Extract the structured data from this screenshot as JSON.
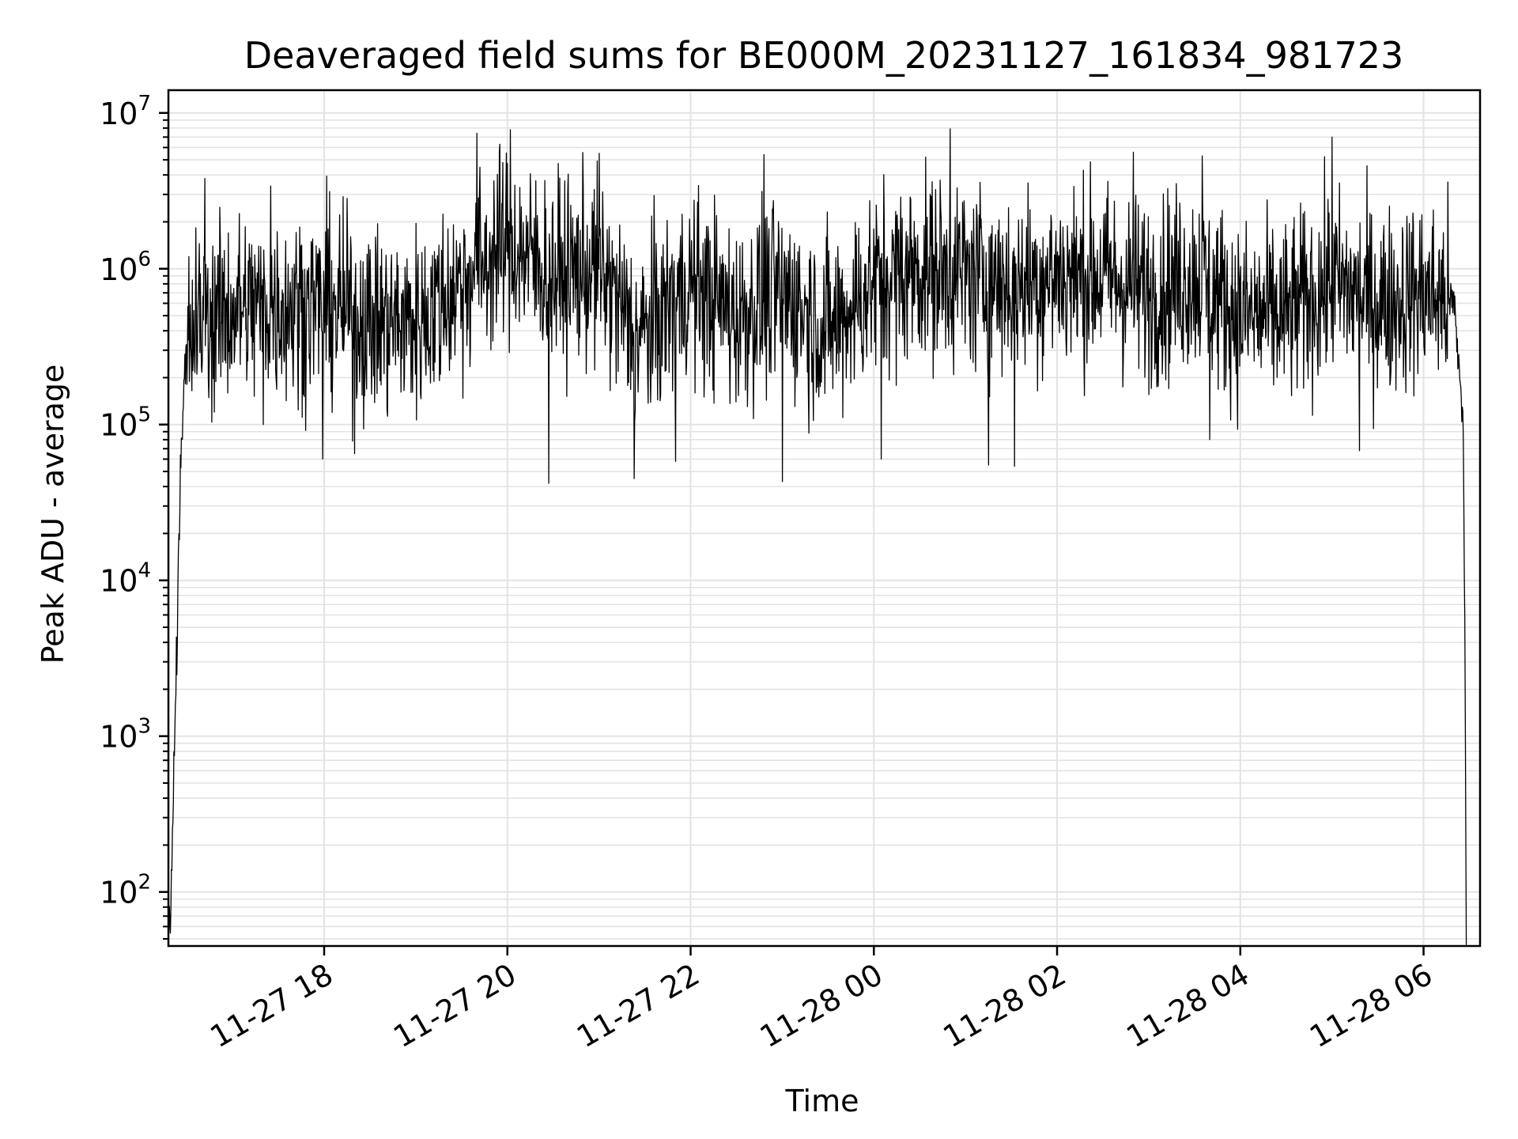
{
  "chart_data": {
    "type": "line",
    "title": "Deaveraged field sums for BE000M_20231127_161834_981723",
    "xlabel": "Time",
    "ylabel": "Peak ADU - average",
    "yscale": "log",
    "ylim": [
      45,
      14000000
    ],
    "xlim": [
      "2023-11-27 16:18",
      "2023-11-28 06:37"
    ],
    "grid": true,
    "line_color": "#000000",
    "x_ticks": [
      {
        "value": "2023-11-27 18:00",
        "label": "11-27 18"
      },
      {
        "value": "2023-11-27 20:00",
        "label": "11-27 20"
      },
      {
        "value": "2023-11-27 22:00",
        "label": "11-27 22"
      },
      {
        "value": "2023-11-28 00:00",
        "label": "11-28 00"
      },
      {
        "value": "2023-11-28 02:00",
        "label": "11-28 02"
      },
      {
        "value": "2023-11-28 04:00",
        "label": "11-28 04"
      },
      {
        "value": "2023-11-28 06:00",
        "label": "11-28 06"
      }
    ],
    "y_ticks": [
      {
        "value": 100,
        "base": "10",
        "exp": "2"
      },
      {
        "value": 1000,
        "base": "10",
        "exp": "3"
      },
      {
        "value": 10000,
        "base": "10",
        "exp": "4"
      },
      {
        "value": 100000,
        "base": "10",
        "exp": "5"
      },
      {
        "value": 1000000,
        "base": "10",
        "exp": "6"
      },
      {
        "value": 10000000,
        "base": "10",
        "exp": "7"
      }
    ],
    "series": [
      {
        "envelope": [
          {
            "t": "2023-11-27 16:18",
            "y": 45
          },
          {
            "t": "2023-11-27 16:20",
            "y": 120
          },
          {
            "t": "2023-11-27 16:22",
            "y": 900
          },
          {
            "t": "2023-11-27 16:24",
            "y": 6000
          },
          {
            "t": "2023-11-27 16:26",
            "y": 60000
          },
          {
            "t": "2023-11-27 16:30",
            "y": 400000
          },
          {
            "t": "2023-11-27 17:00",
            "y": 550000
          },
          {
            "t": "2023-11-27 18:00",
            "y": 600000
          },
          {
            "t": "2023-11-27 18:30",
            "y": 450000
          },
          {
            "t": "2023-11-27 19:00",
            "y": 450000
          },
          {
            "t": "2023-11-27 19:30",
            "y": 800000
          },
          {
            "t": "2023-11-27 20:00",
            "y": 1500000
          },
          {
            "t": "2023-11-27 20:30",
            "y": 900000
          },
          {
            "t": "2023-11-27 21:00",
            "y": 1000000
          },
          {
            "t": "2023-11-27 21:25",
            "y": 350000
          },
          {
            "t": "2023-11-27 22:00",
            "y": 800000
          },
          {
            "t": "2023-11-27 22:30",
            "y": 500000
          },
          {
            "t": "2023-11-27 23:00",
            "y": 700000
          },
          {
            "t": "2023-11-27 23:30",
            "y": 400000
          },
          {
            "t": "2023-11-28 00:00",
            "y": 800000
          },
          {
            "t": "2023-11-28 00:30",
            "y": 1000000
          },
          {
            "t": "2023-11-28 01:00",
            "y": 900000
          },
          {
            "t": "2023-11-28 01:30",
            "y": 800000
          },
          {
            "t": "2023-11-28 02:00",
            "y": 900000
          },
          {
            "t": "2023-11-28 02:30",
            "y": 900000
          },
          {
            "t": "2023-11-28 03:00",
            "y": 700000
          },
          {
            "t": "2023-11-28 03:30",
            "y": 900000
          },
          {
            "t": "2023-11-28 04:00",
            "y": 500000
          },
          {
            "t": "2023-11-28 04:30",
            "y": 500000
          },
          {
            "t": "2023-11-28 05:00",
            "y": 800000
          },
          {
            "t": "2023-11-28 05:30",
            "y": 600000
          },
          {
            "t": "2023-11-28 06:00",
            "y": 700000
          },
          {
            "t": "2023-11-28 06:20",
            "y": 600000
          },
          {
            "t": "2023-11-28 06:26",
            "y": 100000
          },
          {
            "t": "2023-11-28 06:27",
            "y": 6000
          },
          {
            "t": "2023-11-28 06:28",
            "y": 45
          }
        ],
        "spikes": [
          {
            "t": "2023-11-27 16:42",
            "y": 3800000
          },
          {
            "t": "2023-11-27 17:25",
            "y": 3400000
          },
          {
            "t": "2023-11-27 17:20",
            "y": 100000
          },
          {
            "t": "2023-11-27 17:59",
            "y": 60000
          },
          {
            "t": "2023-11-27 18:20",
            "y": 65000
          },
          {
            "t": "2023-11-27 19:40",
            "y": 7400000
          },
          {
            "t": "2023-11-27 20:02",
            "y": 7800000
          },
          {
            "t": "2023-11-27 20:27",
            "y": 42000
          },
          {
            "t": "2023-11-27 21:00",
            "y": 5500000
          },
          {
            "t": "2023-11-27 21:23",
            "y": 45000
          },
          {
            "t": "2023-11-27 21:50",
            "y": 58000
          },
          {
            "t": "2023-11-27 22:48",
            "y": 5400000
          },
          {
            "t": "2023-11-27 23:00",
            "y": 43000
          },
          {
            "t": "2023-11-28 00:05",
            "y": 60000
          },
          {
            "t": "2023-11-28 00:50",
            "y": 7900000
          },
          {
            "t": "2023-11-28 01:15",
            "y": 55000
          },
          {
            "t": "2023-11-28 01:32",
            "y": 54000
          },
          {
            "t": "2023-11-28 02:50",
            "y": 5600000
          },
          {
            "t": "2023-11-28 03:35",
            "y": 5300000
          },
          {
            "t": "2023-11-28 03:40",
            "y": 80000
          },
          {
            "t": "2023-11-28 05:00",
            "y": 7000000
          },
          {
            "t": "2023-11-28 05:18",
            "y": 68000
          },
          {
            "t": "2023-11-28 06:16",
            "y": 3600000
          }
        ]
      }
    ]
  }
}
